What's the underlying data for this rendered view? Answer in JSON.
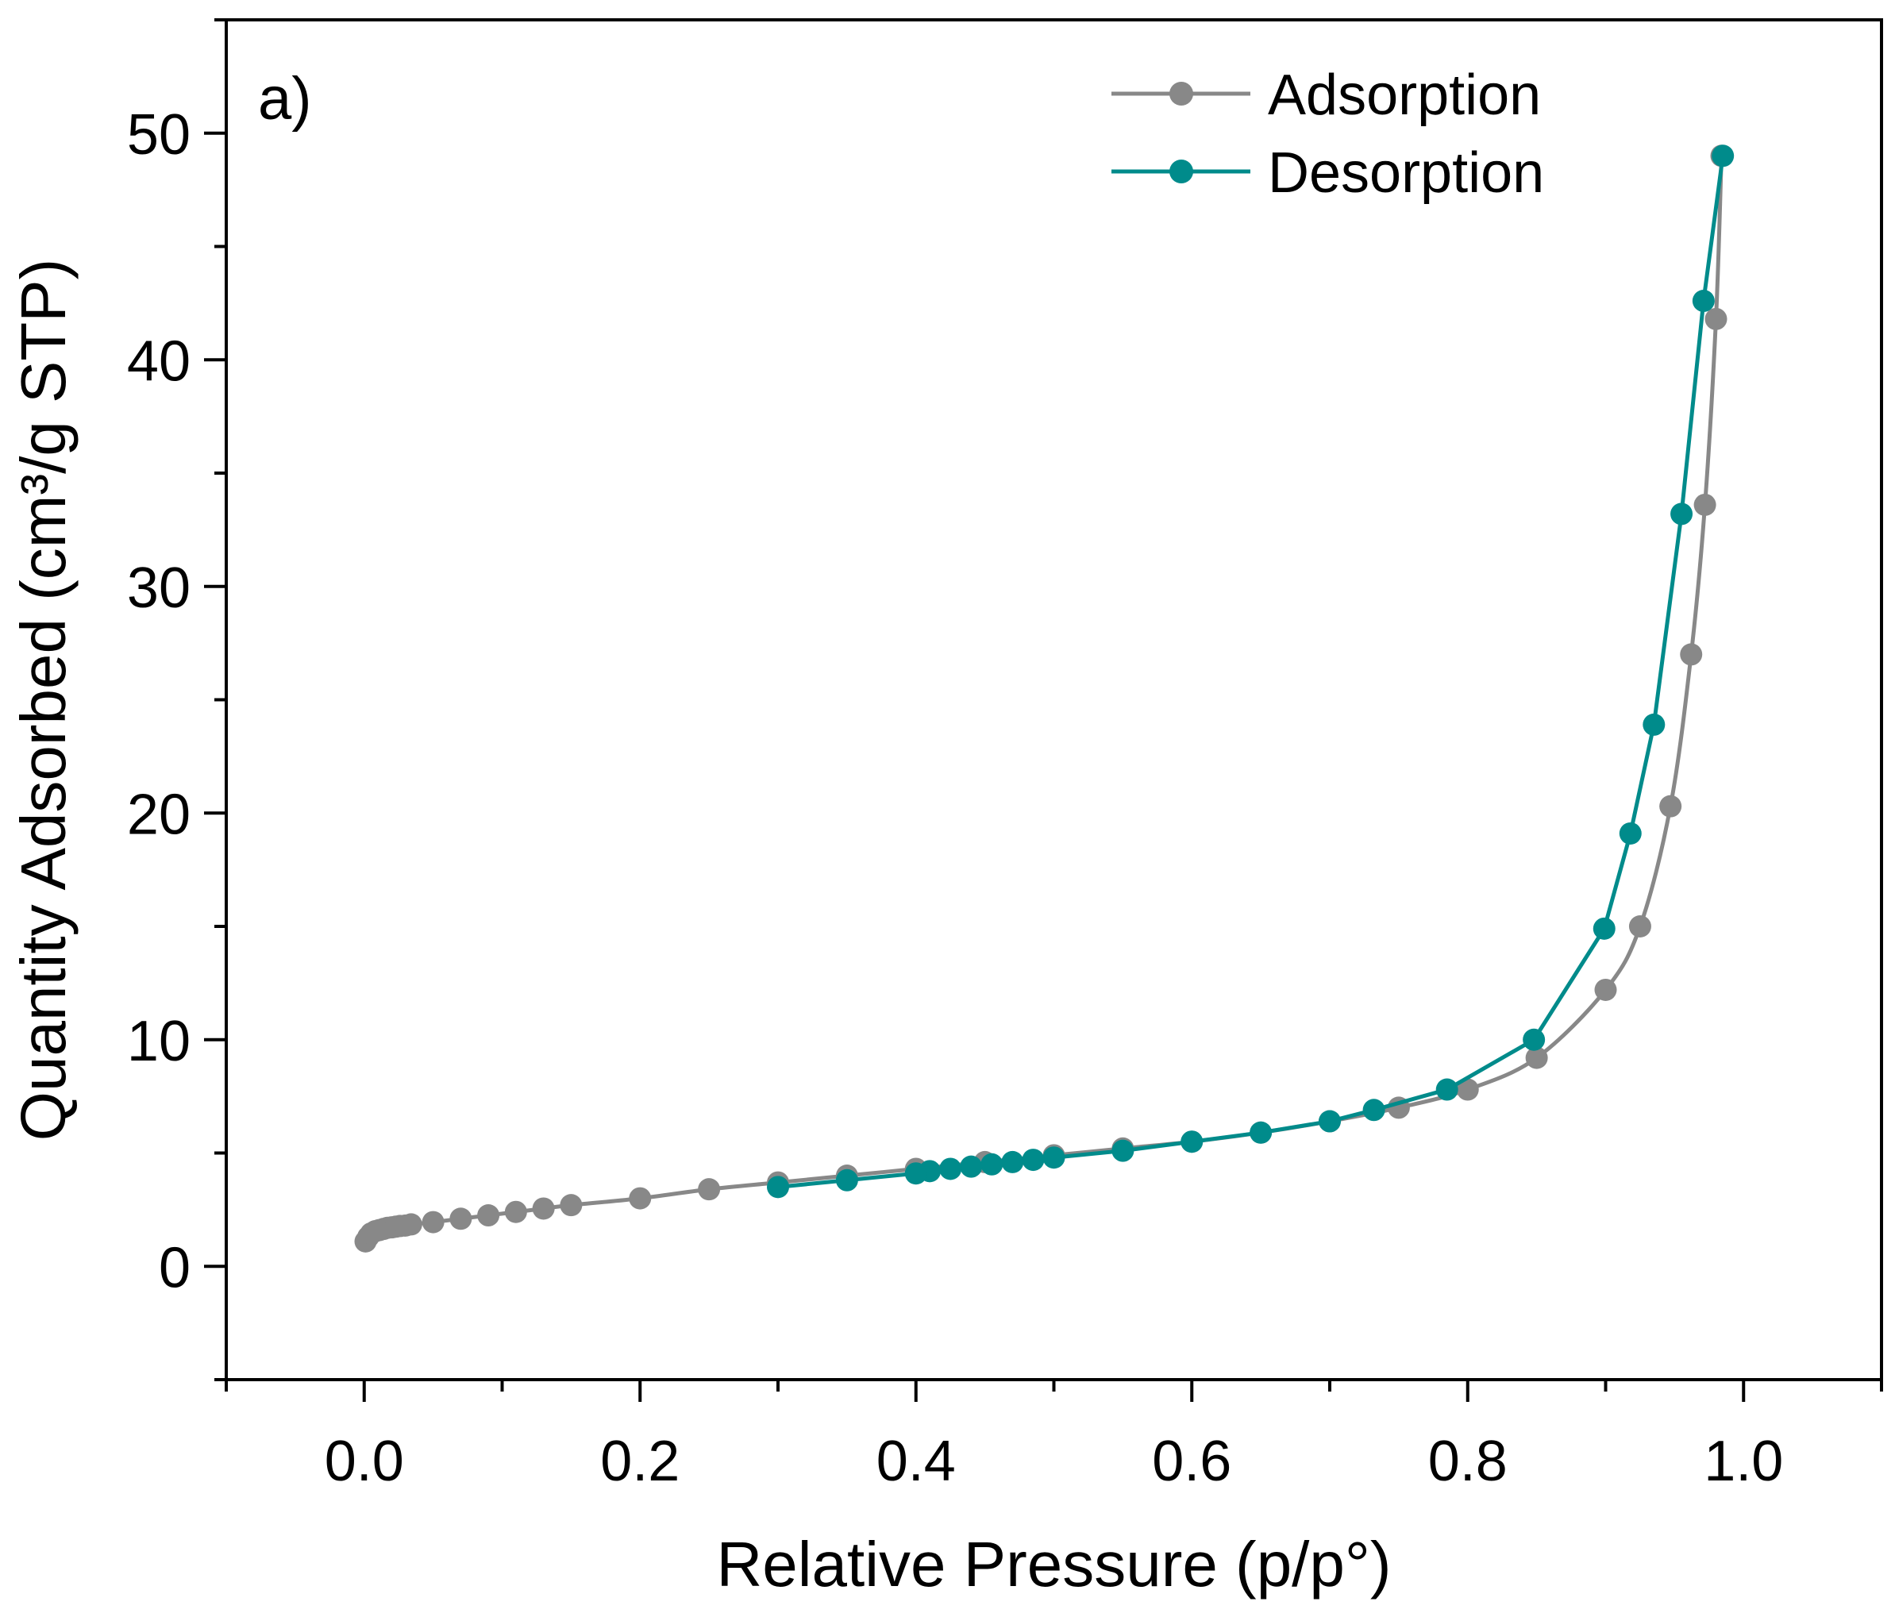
{
  "chart_data": {
    "type": "line",
    "panel_label": "a)",
    "title": "",
    "xlabel": "Relative Pressure (p/p°)",
    "ylabel": "Quantity Adsorbed (cm³/g STP)",
    "xlim": [
      -0.1,
      1.1
    ],
    "ylim": [
      -5,
      55
    ],
    "x_ticks": [
      0.0,
      0.2,
      0.4,
      0.6,
      0.8,
      1.0
    ],
    "x_tick_labels": [
      "0.0",
      "0.2",
      "0.4",
      "0.6",
      "0.8",
      "1.0"
    ],
    "y_ticks": [
      0,
      10,
      20,
      30,
      40,
      50
    ],
    "y_tick_labels": [
      "0",
      "10",
      "20",
      "30",
      "40",
      "50"
    ],
    "grid": false,
    "legend_position": "top-right",
    "series": [
      {
        "name": "Adsorption",
        "color": "#888888",
        "x": [
          0.001,
          0.003,
          0.005,
          0.008,
          0.011,
          0.014,
          0.017,
          0.02,
          0.023,
          0.026,
          0.03,
          0.034,
          0.05,
          0.07,
          0.09,
          0.11,
          0.13,
          0.15,
          0.2,
          0.25,
          0.3,
          0.35,
          0.4,
          0.45,
          0.5,
          0.55,
          0.6,
          0.65,
          0.7,
          0.75,
          0.8,
          0.85,
          0.9,
          0.925,
          0.947,
          0.962,
          0.972,
          0.98,
          0.984
        ],
        "y": [
          1.1,
          1.3,
          1.45,
          1.55,
          1.6,
          1.65,
          1.7,
          1.72,
          1.75,
          1.78,
          1.8,
          1.85,
          1.95,
          2.1,
          2.25,
          2.4,
          2.55,
          2.7,
          3.0,
          3.4,
          3.7,
          4.0,
          4.3,
          4.6,
          4.9,
          5.2,
          5.5,
          5.9,
          6.4,
          7.0,
          7.8,
          9.2,
          12.2,
          15.0,
          20.3,
          27.0,
          33.6,
          41.8,
          49.0
        ]
      },
      {
        "name": "Desorption",
        "color": "#008B8B",
        "x": [
          0.985,
          0.971,
          0.955,
          0.935,
          0.918,
          0.899,
          0.848,
          0.785,
          0.732,
          0.7,
          0.65,
          0.6,
          0.55,
          0.5,
          0.485,
          0.47,
          0.455,
          0.44,
          0.425,
          0.41,
          0.4,
          0.35,
          0.3
        ],
        "y": [
          49.0,
          42.6,
          33.2,
          23.9,
          19.1,
          14.9,
          10.0,
          7.8,
          6.9,
          6.4,
          5.9,
          5.5,
          5.1,
          4.8,
          4.7,
          4.6,
          4.5,
          4.4,
          4.3,
          4.2,
          4.1,
          3.8,
          3.5
        ]
      }
    ]
  }
}
